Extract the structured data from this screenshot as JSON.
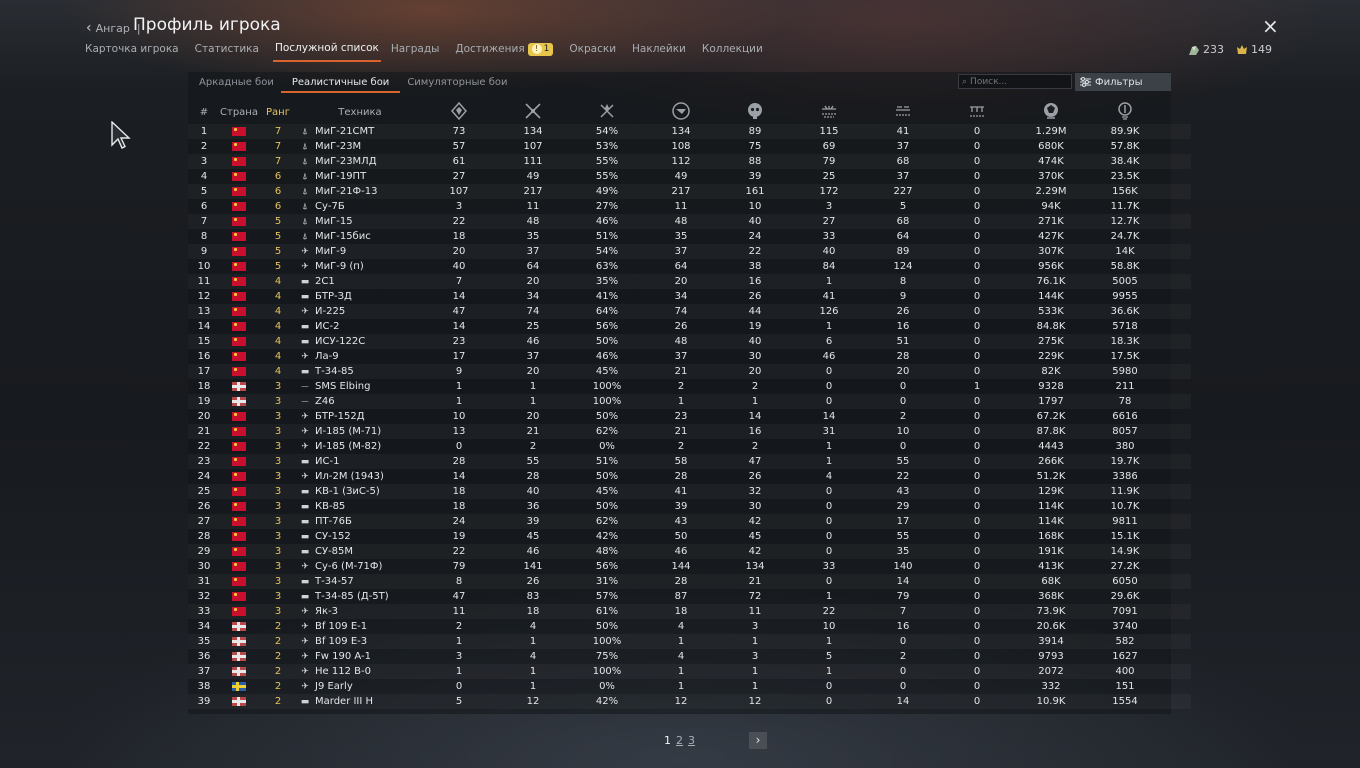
{
  "header": {
    "back_label": "Ангар",
    "separator": "|",
    "title": "Профиль игрока",
    "close_glyph": "×"
  },
  "tabs": [
    {
      "label": "Карточка игрока",
      "active": false
    },
    {
      "label": "Статистика",
      "active": false
    },
    {
      "label": "Послужной список",
      "active": true
    },
    {
      "label": "Награды",
      "active": false
    },
    {
      "label": "Достижения",
      "active": false,
      "badge": "1"
    },
    {
      "label": "Окраски",
      "active": false
    },
    {
      "label": "Наклейки",
      "active": false
    },
    {
      "label": "Коллекции",
      "active": false
    }
  ],
  "currency": {
    "silver": "233",
    "gold": "149"
  },
  "subtabs": [
    {
      "label": "Аркадные бои",
      "active": false
    },
    {
      "label": "Реалистичные бои",
      "active": true
    },
    {
      "label": "Симуляторные бои",
      "active": false
    }
  ],
  "search": {
    "placeholder": "Поиск..."
  },
  "filters_label": "Фильтры",
  "columns": {
    "num": "#",
    "country": "Страна",
    "rank": "Ранг",
    "vehicle": "Техника",
    "stat_icons": [
      "battles-icon",
      "respawns-icon",
      "victories-percent-icon",
      "missions-icon",
      "deaths-icon",
      "air-kills-icon",
      "ground-kills-icon",
      "naval-kills-icon",
      "lions-earned-icon",
      "research-points-icon"
    ]
  },
  "colors": {
    "accent": "#d8632c",
    "rank": "#e8c25d",
    "badge": "#e7c64b"
  },
  "rows": [
    {
      "n": "1",
      "flag": "ussr",
      "rank": "7",
      "type": "jet",
      "name": "МиГ-21СМТ",
      "v": [
        "73",
        "134",
        "54%",
        "134",
        "89",
        "115",
        "41",
        "0",
        "1.29M",
        "89.9K"
      ]
    },
    {
      "n": "2",
      "flag": "ussr",
      "rank": "7",
      "type": "jet",
      "name": "МиГ-23М",
      "v": [
        "57",
        "107",
        "53%",
        "108",
        "75",
        "69",
        "37",
        "0",
        "680K",
        "57.8K"
      ]
    },
    {
      "n": "3",
      "flag": "ussr",
      "rank": "7",
      "type": "jet",
      "name": "МиГ-23МЛД",
      "v": [
        "61",
        "111",
        "55%",
        "112",
        "88",
        "79",
        "68",
        "0",
        "474K",
        "38.4K"
      ]
    },
    {
      "n": "4",
      "flag": "ussr",
      "rank": "6",
      "type": "jet",
      "name": "МиГ-19ПТ",
      "v": [
        "27",
        "49",
        "55%",
        "49",
        "39",
        "25",
        "37",
        "0",
        "370K",
        "23.5K"
      ]
    },
    {
      "n": "5",
      "flag": "ussr",
      "rank": "6",
      "type": "jet",
      "name": "МиГ-21Ф-13",
      "v": [
        "107",
        "217",
        "49%",
        "217",
        "161",
        "172",
        "227",
        "0",
        "2.29M",
        "156K"
      ]
    },
    {
      "n": "6",
      "flag": "ussr",
      "rank": "6",
      "type": "jet",
      "name": "Су-7Б",
      "v": [
        "3",
        "11",
        "27%",
        "11",
        "10",
        "3",
        "5",
        "0",
        "94K",
        "11.7K"
      ]
    },
    {
      "n": "7",
      "flag": "ussr",
      "rank": "5",
      "type": "jet",
      "name": "МиГ-15",
      "v": [
        "22",
        "48",
        "46%",
        "48",
        "40",
        "27",
        "68",
        "0",
        "271K",
        "12.7K"
      ]
    },
    {
      "n": "8",
      "flag": "ussr",
      "rank": "5",
      "type": "jet",
      "name": "МиГ-15бис",
      "v": [
        "18",
        "35",
        "51%",
        "35",
        "24",
        "33",
        "64",
        "0",
        "427K",
        "24.7K"
      ]
    },
    {
      "n": "9",
      "flag": "ussr",
      "rank": "5",
      "type": "plane",
      "name": "МиГ-9",
      "v": [
        "20",
        "37",
        "54%",
        "37",
        "22",
        "40",
        "89",
        "0",
        "307K",
        "14K"
      ]
    },
    {
      "n": "10",
      "flag": "ussr",
      "rank": "5",
      "type": "plane",
      "name": "МиГ-9 (п)",
      "v": [
        "40",
        "64",
        "63%",
        "64",
        "38",
        "84",
        "124",
        "0",
        "956K",
        "58.8K"
      ]
    },
    {
      "n": "11",
      "flag": "ussr",
      "rank": "4",
      "type": "tank",
      "name": "2С1",
      "v": [
        "7",
        "20",
        "35%",
        "20",
        "16",
        "1",
        "8",
        "0",
        "76.1K",
        "5005"
      ]
    },
    {
      "n": "12",
      "flag": "ussr",
      "rank": "4",
      "type": "tank",
      "name": "БТР-ЗД",
      "v": [
        "14",
        "34",
        "41%",
        "34",
        "26",
        "41",
        "9",
        "0",
        "144K",
        "9955"
      ]
    },
    {
      "n": "13",
      "flag": "ussr",
      "rank": "4",
      "type": "plane",
      "name": "И-225",
      "v": [
        "47",
        "74",
        "64%",
        "74",
        "44",
        "126",
        "26",
        "0",
        "533K",
        "36.6K"
      ]
    },
    {
      "n": "14",
      "flag": "ussr",
      "rank": "4",
      "type": "tank",
      "name": "ИС-2",
      "v": [
        "14",
        "25",
        "56%",
        "26",
        "19",
        "1",
        "16",
        "0",
        "84.8K",
        "5718"
      ]
    },
    {
      "n": "15",
      "flag": "ussr",
      "rank": "4",
      "type": "tank",
      "name": "ИСУ-122С",
      "v": [
        "23",
        "46",
        "50%",
        "48",
        "40",
        "6",
        "51",
        "0",
        "275K",
        "18.3K"
      ]
    },
    {
      "n": "16",
      "flag": "ussr",
      "rank": "4",
      "type": "plane",
      "name": "Ла-9",
      "v": [
        "17",
        "37",
        "46%",
        "37",
        "30",
        "46",
        "28",
        "0",
        "229K",
        "17.5K"
      ]
    },
    {
      "n": "17",
      "flag": "ussr",
      "rank": "4",
      "type": "tank",
      "name": "Т-34-85",
      "v": [
        "9",
        "20",
        "45%",
        "21",
        "20",
        "0",
        "20",
        "0",
        "82K",
        "5980"
      ]
    },
    {
      "n": "18",
      "flag": "de",
      "rank": "3",
      "type": "ship",
      "name": "SMS Elbing",
      "v": [
        "1",
        "1",
        "100%",
        "2",
        "2",
        "0",
        "0",
        "1",
        "9328",
        "211"
      ]
    },
    {
      "n": "19",
      "flag": "de",
      "rank": "3",
      "type": "ship",
      "name": "Z46",
      "v": [
        "1",
        "1",
        "100%",
        "1",
        "1",
        "0",
        "0",
        "0",
        "1797",
        "78"
      ]
    },
    {
      "n": "20",
      "flag": "ussr",
      "rank": "3",
      "type": "plane",
      "name": "БТР-152Д",
      "v": [
        "10",
        "20",
        "50%",
        "23",
        "14",
        "14",
        "2",
        "0",
        "67.2K",
        "6616"
      ]
    },
    {
      "n": "21",
      "flag": "ussr",
      "rank": "3",
      "type": "plane",
      "name": "И-185 (М-71)",
      "v": [
        "13",
        "21",
        "62%",
        "21",
        "16",
        "31",
        "10",
        "0",
        "87.8K",
        "8057"
      ]
    },
    {
      "n": "22",
      "flag": "ussr",
      "rank": "3",
      "type": "plane",
      "name": "И-185 (М-82)",
      "v": [
        "0",
        "2",
        "0%",
        "2",
        "2",
        "1",
        "0",
        "0",
        "4443",
        "380"
      ]
    },
    {
      "n": "23",
      "flag": "ussr",
      "rank": "3",
      "type": "tank",
      "name": "ИС-1",
      "v": [
        "28",
        "55",
        "51%",
        "58",
        "47",
        "1",
        "55",
        "0",
        "266K",
        "19.7K"
      ]
    },
    {
      "n": "24",
      "flag": "ussr",
      "rank": "3",
      "type": "plane",
      "name": "Ил-2М (1943)",
      "v": [
        "14",
        "28",
        "50%",
        "28",
        "26",
        "4",
        "22",
        "0",
        "51.2K",
        "3386"
      ]
    },
    {
      "n": "25",
      "flag": "ussr",
      "rank": "3",
      "type": "tank",
      "name": "КВ-1 (ЗиС-5)",
      "v": [
        "18",
        "40",
        "45%",
        "41",
        "32",
        "0",
        "43",
        "0",
        "129K",
        "11.9K"
      ]
    },
    {
      "n": "26",
      "flag": "ussr",
      "rank": "3",
      "type": "tank",
      "name": "КВ-85",
      "v": [
        "18",
        "36",
        "50%",
        "39",
        "30",
        "0",
        "29",
        "0",
        "114K",
        "10.7K"
      ]
    },
    {
      "n": "27",
      "flag": "ussr",
      "rank": "3",
      "type": "tank",
      "name": "ПТ-76Б",
      "v": [
        "24",
        "39",
        "62%",
        "43",
        "42",
        "0",
        "17",
        "0",
        "114K",
        "9811"
      ]
    },
    {
      "n": "28",
      "flag": "ussr",
      "rank": "3",
      "type": "tank",
      "name": "СУ-152",
      "v": [
        "19",
        "45",
        "42%",
        "50",
        "45",
        "0",
        "55",
        "0",
        "168K",
        "15.1K"
      ]
    },
    {
      "n": "29",
      "flag": "ussr",
      "rank": "3",
      "type": "tank",
      "name": "СУ-85М",
      "v": [
        "22",
        "46",
        "48%",
        "46",
        "42",
        "0",
        "35",
        "0",
        "191K",
        "14.9K"
      ]
    },
    {
      "n": "30",
      "flag": "ussr",
      "rank": "3",
      "type": "plane",
      "name": "Су-6 (М-71Ф)",
      "v": [
        "79",
        "141",
        "56%",
        "144",
        "134",
        "33",
        "140",
        "0",
        "413K",
        "27.2K"
      ]
    },
    {
      "n": "31",
      "flag": "ussr",
      "rank": "3",
      "type": "tank",
      "name": "Т-34-57",
      "v": [
        "8",
        "26",
        "31%",
        "28",
        "21",
        "0",
        "14",
        "0",
        "68K",
        "6050"
      ]
    },
    {
      "n": "32",
      "flag": "ussr",
      "rank": "3",
      "type": "tank",
      "name": "Т-34-85 (Д-5Т)",
      "v": [
        "47",
        "83",
        "57%",
        "87",
        "72",
        "1",
        "79",
        "0",
        "368K",
        "29.6K"
      ]
    },
    {
      "n": "33",
      "flag": "ussr",
      "rank": "3",
      "type": "plane",
      "name": "Як-3",
      "v": [
        "11",
        "18",
        "61%",
        "18",
        "11",
        "22",
        "7",
        "0",
        "73.9K",
        "7091"
      ]
    },
    {
      "n": "34",
      "flag": "de",
      "rank": "2",
      "type": "plane",
      "name": "Bf 109 E-1",
      "v": [
        "2",
        "4",
        "50%",
        "4",
        "3",
        "10",
        "16",
        "0",
        "20.6K",
        "3740"
      ]
    },
    {
      "n": "35",
      "flag": "de",
      "rank": "2",
      "type": "plane",
      "name": "Bf 109 E-3",
      "v": [
        "1",
        "1",
        "100%",
        "1",
        "1",
        "1",
        "0",
        "0",
        "3914",
        "582"
      ]
    },
    {
      "n": "36",
      "flag": "de",
      "rank": "2",
      "type": "plane",
      "name": "Fw 190 A-1",
      "v": [
        "3",
        "4",
        "75%",
        "4",
        "3",
        "5",
        "2",
        "0",
        "9793",
        "1627"
      ]
    },
    {
      "n": "37",
      "flag": "de",
      "rank": "2",
      "type": "plane",
      "name": "He 112 B-0",
      "v": [
        "1",
        "1",
        "100%",
        "1",
        "1",
        "1",
        "0",
        "0",
        "2072",
        "400"
      ]
    },
    {
      "n": "38",
      "flag": "se",
      "rank": "2",
      "type": "plane",
      "name": "J9 Early",
      "v": [
        "0",
        "1",
        "0%",
        "1",
        "1",
        "0",
        "0",
        "0",
        "332",
        "151"
      ]
    },
    {
      "n": "39",
      "flag": "de",
      "rank": "2",
      "type": "tank",
      "name": "Marder III H",
      "v": [
        "5",
        "12",
        "42%",
        "12",
        "12",
        "0",
        "14",
        "0",
        "10.9K",
        "1554"
      ]
    }
  ],
  "pagination": {
    "current": "1",
    "pages": [
      "2",
      "3"
    ],
    "next_glyph": "›"
  }
}
